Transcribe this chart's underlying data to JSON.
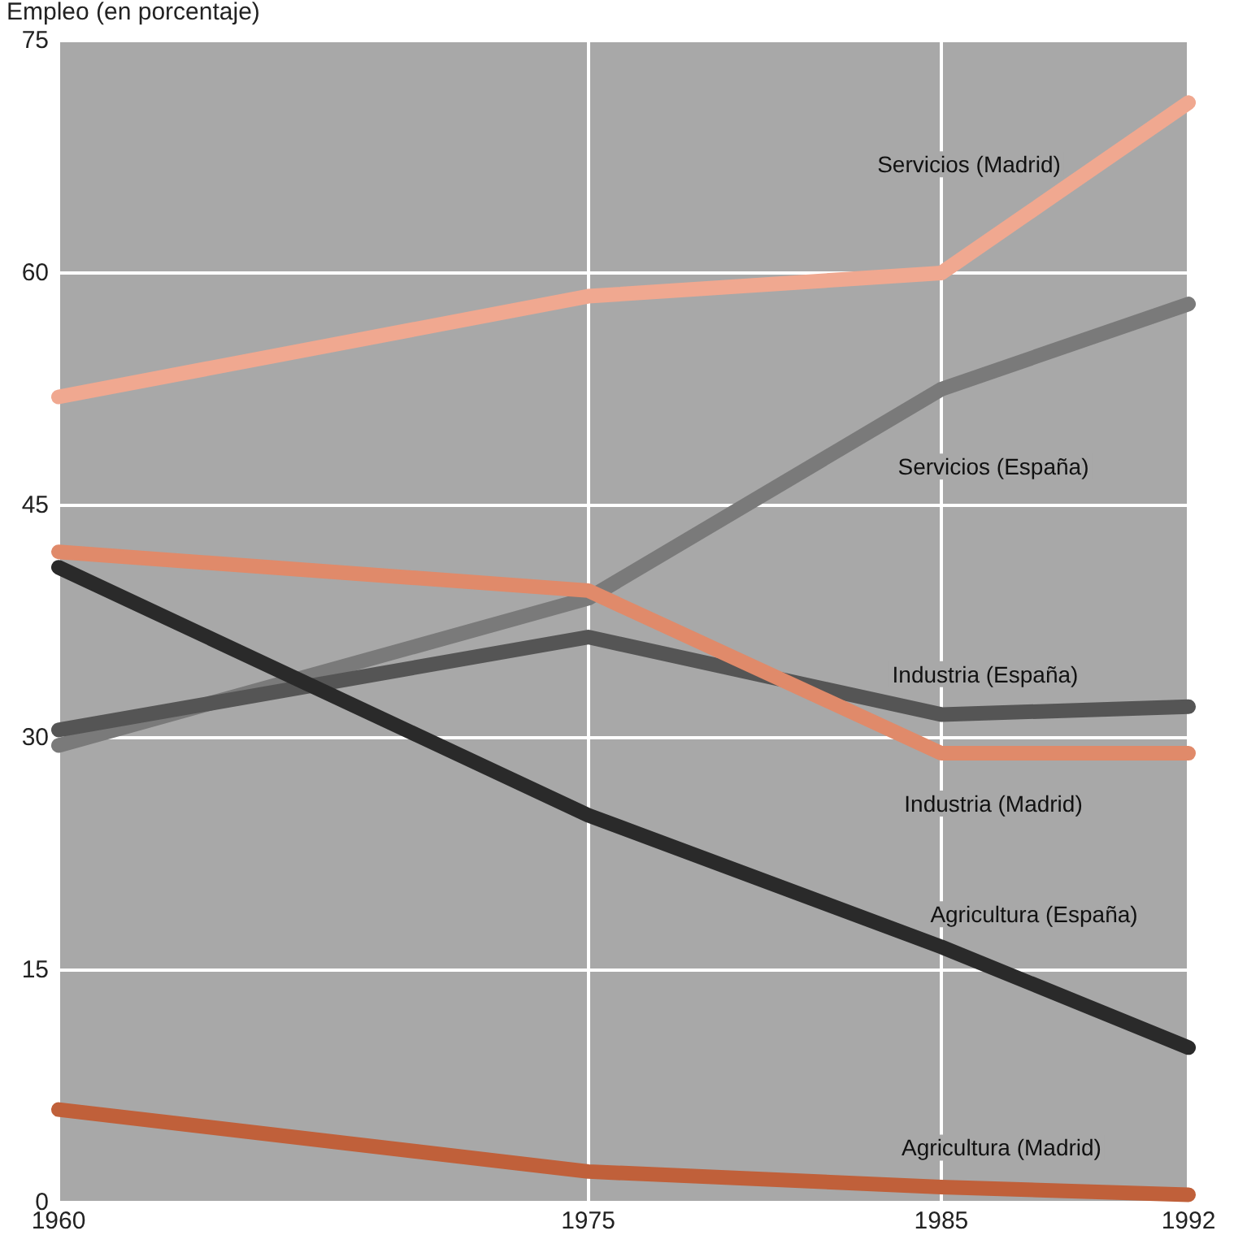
{
  "chart_data": {
    "type": "line",
    "ylabel": "Empleo (en porcentaje)",
    "x": [
      1960,
      1975,
      1985,
      1992
    ],
    "xlim": [
      1960,
      1992
    ],
    "xticks": [
      1960,
      1975,
      1985,
      1992
    ],
    "ylim": [
      0,
      75
    ],
    "yticks": [
      0,
      15,
      30,
      45,
      60,
      75
    ],
    "grid": true,
    "legend": false,
    "marker": "none",
    "series": [
      {
        "name": "Servicios (Madrid)",
        "color": "#f0a890",
        "values": [
          52,
          58.5,
          60,
          71
        ]
      },
      {
        "name": "Servicios (España)",
        "color": "#7a7a7a",
        "values": [
          29.5,
          39,
          52.5,
          58
        ]
      },
      {
        "name": "Industria (España)",
        "color": "#555555",
        "values": [
          30.5,
          36.5,
          31.5,
          32
        ]
      },
      {
        "name": "Industria (Madrid)",
        "color": "#e08a6a",
        "values": [
          42,
          39.5,
          29,
          29
        ]
      },
      {
        "name": "Agricultura (España)",
        "color": "#2a2a2a",
        "values": [
          41,
          25,
          16.5,
          10
        ]
      },
      {
        "name": "Agricultura (Madrid)",
        "color": "#c0603a",
        "values": [
          6,
          2,
          1,
          0.5
        ]
      }
    ]
  }
}
